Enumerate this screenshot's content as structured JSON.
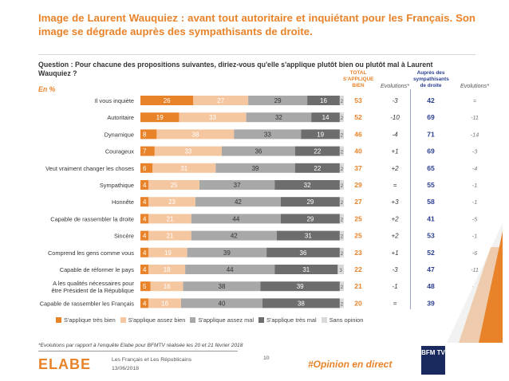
{
  "title": "Image de Laurent Wauquiez : avant tout autoritaire et inquiétant pour les Français. Son image se dégrade auprès des sympathisants de droite.",
  "question": "Question : Pour chacune des propositions suivantes, diriez-vous qu'elle s'applique plutôt bien ou plutôt mal à Laurent Wauquiez ?",
  "unit_label": "En %",
  "column_headers": {
    "total": "TOTAL S'APPLIQUE BIEN",
    "evolution": "Evolutions*",
    "droite": "Auprès des sympathisants de droite",
    "evolution2": "Evolutions*"
  },
  "legend": [
    {
      "label": "S'applique très bien",
      "color": "#e8832a"
    },
    {
      "label": "S'applique assez bien",
      "color": "#f5c7a1"
    },
    {
      "label": "S'applique assez mal",
      "color": "#a8a8a8"
    },
    {
      "label": "S'applique très mal",
      "color": "#6d6d6d"
    },
    {
      "label": "Sans opinion",
      "color": "#d9d9d9"
    }
  ],
  "chart_data": {
    "type": "bar",
    "orientation": "horizontal-stacked-100",
    "categories": [
      "Il vous inquiète",
      "Autoritaire",
      "Dynamique",
      "Courageux",
      "Veut vraiment changer les choses",
      "Sympathique",
      "Honnête",
      "Capable de rassembler la droite",
      "Sincère",
      "Comprend les gens comme vous",
      "Capable de réformer le pays",
      "A les qualités nécessaires pour être Président de la République",
      "Capable de rassembler les Français"
    ],
    "series": [
      {
        "name": "S'applique très bien",
        "values": [
          26,
          19,
          8,
          7,
          6,
          4,
          4,
          4,
          4,
          4,
          4,
          5,
          4
        ]
      },
      {
        "name": "S'applique assez bien",
        "values": [
          27,
          33,
          38,
          33,
          31,
          25,
          23,
          21,
          21,
          19,
          18,
          16,
          16
        ]
      },
      {
        "name": "S'applique assez mal",
        "values": [
          29,
          32,
          33,
          36,
          39,
          37,
          42,
          44,
          42,
          39,
          44,
          38,
          40
        ]
      },
      {
        "name": "S'applique très mal",
        "values": [
          16,
          14,
          19,
          22,
          22,
          32,
          29,
          29,
          31,
          36,
          31,
          39,
          38
        ]
      },
      {
        "name": "Sans opinion",
        "values": [
          2,
          2,
          2,
          2,
          2,
          2,
          2,
          2,
          2,
          2,
          3,
          2,
          2
        ]
      }
    ],
    "total_bien": [
      53,
      52,
      46,
      40,
      37,
      29,
      27,
      25,
      25,
      23,
      22,
      21,
      20
    ],
    "evolutions_total": [
      "-3",
      "-10",
      "-4",
      "+1",
      "+2",
      "=",
      "+3",
      "+2",
      "+2",
      "+1",
      "-3",
      "-1",
      "="
    ],
    "sympathisants_droite": [
      42,
      69,
      71,
      69,
      65,
      55,
      58,
      41,
      53,
      52,
      47,
      48,
      39
    ],
    "evolutions_droite": [
      "=",
      "-11",
      "-14",
      "-3",
      "-4",
      "-1",
      "-1",
      "-5",
      "-1",
      "-6",
      "-11",
      "-5",
      "-3"
    ]
  },
  "footnote": "*Evolutions par rapport à l'enquête Elabe pour BFMTV réalisée les 20 et 21 février 2018",
  "logo_text": "ELABE",
  "source_line1": "Les Français et Les Républicains",
  "source_line2": "13/06/2018",
  "page_number": "10",
  "hashtag": "#Opinion en direct",
  "brand_badge": "BFM TV"
}
